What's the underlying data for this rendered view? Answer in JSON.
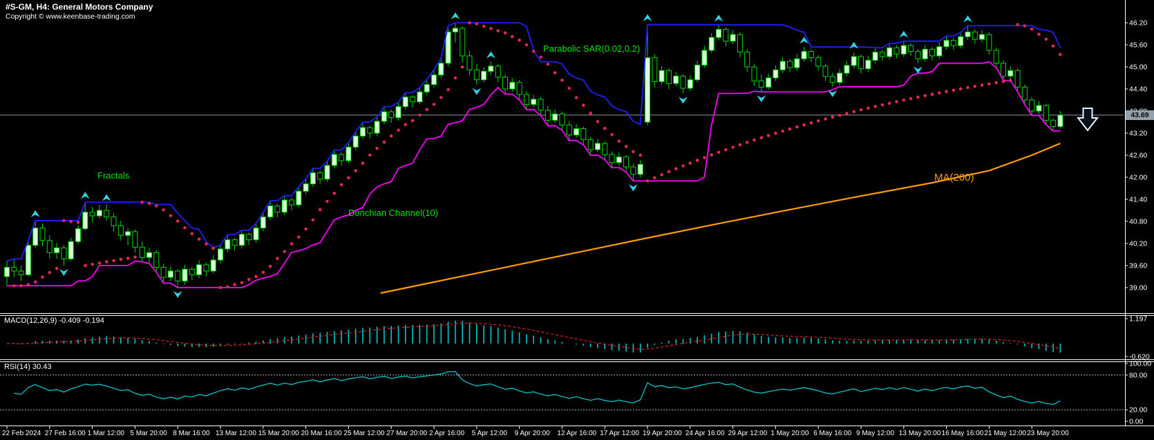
{
  "header": {
    "title": "#S-GM, H4:  General Motors Company",
    "copyright": "Copyright © www.keenbase-trading.com"
  },
  "chart_data": {
    "type": "candlestick",
    "symbol": "#S-GM",
    "timeframe": "H4",
    "company": "General Motors Company",
    "current_price": "43.69",
    "current_price_value": 43.69,
    "price_axis": {
      "labels": [
        "46.20",
        "45.60",
        "45.00",
        "44.40",
        "43.80",
        "43.20",
        "42.60",
        "42.00",
        "41.40",
        "40.80",
        "40.20",
        "39.60",
        "39.00"
      ],
      "top_value": 46.2,
      "step": 0.6
    },
    "x_ticks": [
      "22 Feb 2024",
      "27 Feb 16:00",
      "1 Mar 12:00",
      "5 Mar 20:00",
      "8 Mar 16:00",
      "13 Mar 12:00",
      "15 Mar 20:00",
      "20 Mar 16:00",
      "25 Mar 12:00",
      "27 Mar 20:00",
      "2 Apr 16:00",
      "5 Apr 12:00",
      "9 Apr 20:00",
      "12 Apr 16:00",
      "17 Apr 12:00",
      "19 Apr 20:00",
      "24 Apr 16:00",
      "29 Apr 12:00",
      "1 May 20:00",
      "6 May 16:00",
      "9 May 12:00",
      "13 May 20:00",
      "16 May 16:00",
      "21 May 12:00",
      "23 May 20:00"
    ],
    "bars_per_tick": 6,
    "ohlc": [
      [
        39.3,
        39.72,
        39.05,
        39.55
      ],
      [
        39.55,
        39.78,
        39.28,
        39.45
      ],
      [
        39.45,
        39.6,
        39.18,
        39.35
      ],
      [
        39.35,
        40.28,
        39.3,
        40.15
      ],
      [
        40.15,
        40.82,
        40.08,
        40.62
      ],
      [
        40.62,
        40.75,
        40.12,
        40.28
      ],
      [
        40.28,
        40.42,
        39.8,
        39.95
      ],
      [
        39.95,
        40.22,
        39.78,
        40.08
      ],
      [
        40.08,
        40.15,
        39.6,
        39.78
      ],
      [
        39.78,
        40.35,
        39.72,
        40.25
      ],
      [
        40.25,
        40.7,
        40.18,
        40.6
      ],
      [
        40.6,
        41.32,
        40.55,
        41.05
      ],
      [
        41.05,
        41.2,
        40.78,
        40.95
      ],
      [
        40.95,
        41.25,
        40.88,
        41.1
      ],
      [
        41.1,
        41.26,
        40.82,
        40.92
      ],
      [
        40.92,
        41.02,
        40.52,
        40.68
      ],
      [
        40.68,
        40.82,
        40.28,
        40.42
      ],
      [
        40.42,
        40.62,
        40.15,
        40.52
      ],
      [
        40.52,
        40.58,
        39.95,
        40.1
      ],
      [
        40.1,
        40.25,
        39.7,
        39.82
      ],
      [
        39.82,
        40.08,
        39.65,
        39.95
      ],
      [
        39.95,
        40.02,
        39.42,
        39.55
      ],
      [
        39.55,
        39.65,
        39.12,
        39.28
      ],
      [
        39.28,
        39.58,
        39.18,
        39.45
      ],
      [
        39.45,
        39.5,
        39.0,
        39.18
      ],
      [
        39.18,
        39.62,
        39.08,
        39.5
      ],
      [
        39.5,
        39.56,
        39.2,
        39.35
      ],
      [
        39.35,
        39.74,
        39.26,
        39.62
      ],
      [
        39.62,
        39.68,
        39.3,
        39.45
      ],
      [
        39.45,
        39.88,
        39.38,
        39.75
      ],
      [
        39.75,
        40.16,
        39.66,
        40.05
      ],
      [
        40.05,
        40.44,
        39.96,
        40.3
      ],
      [
        40.3,
        40.36,
        40.0,
        40.15
      ],
      [
        40.15,
        40.56,
        40.06,
        40.45
      ],
      [
        40.45,
        40.5,
        40.16,
        40.3
      ],
      [
        40.3,
        40.74,
        40.22,
        40.62
      ],
      [
        40.62,
        41.04,
        40.54,
        40.92
      ],
      [
        40.92,
        41.36,
        40.84,
        41.22
      ],
      [
        41.22,
        41.28,
        40.92,
        41.05
      ],
      [
        41.05,
        41.5,
        40.98,
        41.38
      ],
      [
        41.38,
        41.44,
        41.1,
        41.25
      ],
      [
        41.25,
        41.74,
        41.18,
        41.62
      ],
      [
        41.62,
        41.96,
        41.54,
        41.82
      ],
      [
        41.82,
        42.24,
        41.74,
        42.12
      ],
      [
        42.12,
        42.18,
        41.82,
        41.95
      ],
      [
        41.95,
        42.44,
        41.88,
        42.32
      ],
      [
        42.32,
        42.74,
        42.24,
        42.62
      ],
      [
        42.62,
        42.68,
        42.32,
        42.45
      ],
      [
        42.45,
        42.94,
        42.38,
        42.82
      ],
      [
        42.82,
        43.24,
        42.74,
        43.12
      ],
      [
        43.12,
        43.5,
        43.04,
        43.35
      ],
      [
        43.35,
        43.4,
        43.05,
        43.2
      ],
      [
        43.2,
        43.64,
        43.12,
        43.52
      ],
      [
        43.52,
        43.92,
        43.44,
        43.78
      ],
      [
        43.78,
        43.84,
        43.48,
        43.62
      ],
      [
        43.62,
        44.04,
        43.54,
        43.92
      ],
      [
        43.92,
        44.3,
        43.84,
        44.18
      ],
      [
        44.18,
        44.24,
        43.9,
        44.05
      ],
      [
        44.05,
        44.44,
        43.98,
        44.32
      ],
      [
        44.32,
        44.66,
        44.24,
        44.52
      ],
      [
        44.52,
        44.92,
        44.44,
        44.78
      ],
      [
        44.78,
        45.24,
        44.7,
        45.1
      ],
      [
        45.1,
        46.12,
        45.02,
        45.95
      ],
      [
        45.95,
        46.2,
        45.66,
        46.05
      ],
      [
        46.05,
        46.1,
        45.12,
        45.3
      ],
      [
        45.3,
        45.44,
        44.78,
        44.92
      ],
      [
        44.92,
        45.08,
        44.52,
        44.65
      ],
      [
        44.65,
        45.0,
        44.58,
        44.88
      ],
      [
        44.88,
        45.14,
        44.78,
        45.02
      ],
      [
        45.02,
        45.08,
        44.58,
        44.72
      ],
      [
        44.72,
        44.8,
        44.26,
        44.4
      ],
      [
        44.4,
        44.7,
        44.32,
        44.58
      ],
      [
        44.58,
        44.64,
        44.1,
        44.25
      ],
      [
        44.25,
        44.34,
        43.84,
        43.98
      ],
      [
        43.98,
        44.24,
        43.9,
        44.12
      ],
      [
        44.12,
        44.18,
        43.68,
        43.82
      ],
      [
        43.82,
        43.94,
        43.4,
        43.55
      ],
      [
        43.55,
        43.84,
        43.48,
        43.72
      ],
      [
        43.72,
        43.78,
        43.28,
        43.42
      ],
      [
        43.42,
        43.52,
        43.0,
        43.15
      ],
      [
        43.15,
        43.44,
        43.08,
        43.32
      ],
      [
        43.32,
        43.38,
        42.88,
        43.02
      ],
      [
        43.02,
        43.1,
        42.6,
        42.75
      ],
      [
        42.75,
        43.04,
        42.68,
        42.92
      ],
      [
        42.92,
        42.98,
        42.48,
        42.62
      ],
      [
        42.62,
        42.7,
        42.26,
        42.4
      ],
      [
        42.4,
        42.67,
        42.32,
        42.55
      ],
      [
        42.55,
        42.6,
        42.14,
        42.28
      ],
      [
        42.28,
        42.36,
        41.9,
        42.08
      ],
      [
        42.08,
        42.47,
        42.0,
        42.35
      ],
      [
        43.5,
        46.15,
        43.42,
        45.25
      ],
      [
        45.25,
        45.34,
        44.44,
        44.6
      ],
      [
        44.6,
        45.02,
        44.52,
        44.9
      ],
      [
        44.9,
        44.96,
        44.4,
        44.55
      ],
      [
        44.55,
        44.87,
        44.47,
        44.75
      ],
      [
        44.75,
        44.8,
        44.28,
        44.42
      ],
      [
        44.42,
        44.77,
        44.34,
        44.65
      ],
      [
        44.65,
        45.17,
        44.58,
        45.05
      ],
      [
        45.05,
        45.57,
        44.98,
        45.45
      ],
      [
        45.45,
        45.92,
        45.38,
        45.8
      ],
      [
        45.8,
        46.14,
        45.72,
        46.02
      ],
      [
        46.02,
        46.08,
        45.56,
        45.7
      ],
      [
        45.7,
        46.0,
        45.62,
        45.88
      ],
      [
        45.88,
        45.94,
        45.26,
        45.4
      ],
      [
        45.4,
        45.48,
        44.86,
        45.0
      ],
      [
        45.0,
        45.08,
        44.48,
        44.62
      ],
      [
        44.62,
        44.8,
        44.32,
        44.45
      ],
      [
        44.45,
        44.82,
        44.38,
        44.7
      ],
      [
        44.7,
        45.04,
        44.62,
        44.92
      ],
      [
        44.92,
        45.27,
        44.84,
        45.15
      ],
      [
        45.15,
        45.21,
        44.86,
        44.98
      ],
      [
        44.98,
        45.34,
        44.9,
        45.22
      ],
      [
        45.22,
        45.54,
        45.14,
        45.42
      ],
      [
        45.42,
        45.48,
        45.13,
        45.25
      ],
      [
        45.25,
        45.32,
        44.9,
        45.02
      ],
      [
        45.02,
        45.08,
        44.62,
        44.74
      ],
      [
        44.74,
        44.84,
        44.46,
        44.58
      ],
      [
        44.58,
        44.95,
        44.5,
        44.83
      ],
      [
        44.83,
        45.16,
        44.75,
        45.04
      ],
      [
        45.04,
        45.4,
        44.96,
        45.28
      ],
      [
        45.28,
        45.34,
        44.83,
        44.95
      ],
      [
        44.95,
        45.3,
        44.87,
        45.18
      ],
      [
        45.18,
        45.52,
        45.1,
        45.4
      ],
      [
        45.4,
        45.46,
        45.16,
        45.28
      ],
      [
        45.28,
        45.64,
        45.2,
        45.52
      ],
      [
        45.52,
        45.58,
        45.23,
        45.35
      ],
      [
        45.35,
        45.7,
        45.27,
        45.58
      ],
      [
        45.58,
        45.64,
        45.3,
        45.42
      ],
      [
        45.42,
        45.48,
        45.1,
        45.22
      ],
      [
        45.22,
        45.6,
        45.14,
        45.48
      ],
      [
        45.48,
        45.54,
        45.18,
        45.3
      ],
      [
        45.3,
        45.67,
        45.22,
        45.55
      ],
      [
        45.55,
        45.84,
        45.47,
        45.72
      ],
      [
        45.72,
        45.78,
        45.46,
        45.58
      ],
      [
        45.58,
        45.94,
        45.5,
        45.82
      ],
      [
        45.82,
        46.12,
        45.74,
        45.95
      ],
      [
        45.95,
        46.02,
        45.63,
        45.75
      ],
      [
        45.75,
        46.0,
        45.67,
        45.88
      ],
      [
        45.88,
        45.94,
        45.33,
        45.45
      ],
      [
        45.45,
        45.52,
        44.98,
        45.1
      ],
      [
        45.1,
        45.18,
        44.63,
        44.75
      ],
      [
        44.75,
        45.02,
        44.67,
        44.9
      ],
      [
        44.9,
        44.96,
        44.33,
        44.45
      ],
      [
        44.45,
        44.52,
        43.98,
        44.1
      ],
      [
        44.1,
        44.18,
        43.68,
        43.8
      ],
      [
        43.8,
        44.07,
        43.72,
        43.95
      ],
      [
        43.95,
        44.0,
        43.43,
        43.55
      ],
      [
        43.55,
        43.6,
        43.26,
        43.38
      ],
      [
        43.38,
        43.8,
        43.32,
        43.69
      ]
    ],
    "indicators": {
      "fractals": {
        "label": "Fractals",
        "color": "#2ED3E6"
      },
      "parabolic_sar": {
        "label": "Parabolic SAR(0.02,0.2)",
        "step": 0.02,
        "maximum": 0.2,
        "color": "#E02850"
      },
      "donchian": {
        "label": "Donchian Channel(10)",
        "period": 10,
        "upper_color": "#2020FF",
        "lower_color": "#FF00FF"
      },
      "ma200": {
        "label": "MA(200)",
        "color": "#FF9C00",
        "points": [
          [
            52.5,
            38.85
          ],
          [
            60,
            39.15
          ],
          [
            70,
            39.55
          ],
          [
            80,
            39.95
          ],
          [
            90,
            40.35
          ],
          [
            100,
            40.74
          ],
          [
            110,
            41.12
          ],
          [
            120,
            41.49
          ],
          [
            130,
            41.85
          ],
          [
            138,
            42.18
          ],
          [
            144,
            42.6
          ],
          [
            148,
            42.92
          ]
        ]
      }
    },
    "macd": {
      "label": "MACD(12,26,9) -0.409 -0.194",
      "fast": 12,
      "slow": 26,
      "signal": 9,
      "value": -0.409,
      "signal_value": -0.194,
      "scale_max_label": "1.197",
      "scale_min_label": "-0.620",
      "scale_max": 1.197,
      "scale_min": -0.62,
      "histogram_color": "#00C8C8",
      "signal_color": "#E82020"
    },
    "rsi": {
      "label": "RSI(14) 30.43",
      "period": 14,
      "value": 30.43,
      "scale_labels": [
        "100.00",
        "80.00",
        "20.00",
        "0.00"
      ],
      "scale_values": [
        100,
        80,
        20,
        0
      ],
      "levels": [
        80,
        20
      ],
      "color": "#00C8C8",
      "level_color": "#C0C0C0"
    },
    "signal_arrow": {
      "name": "sell-signal-arrow",
      "direction": "down",
      "color": "#E8F4FF"
    },
    "colors": {
      "background": "#000000",
      "candle_line": "#00DC00",
      "bull_fill": "#D9FFD9",
      "bear_fill": "#000000",
      "bid_line": "#8E9AA6",
      "axis": "#FFFFFF",
      "badge_bg": "#93A1AE"
    }
  }
}
